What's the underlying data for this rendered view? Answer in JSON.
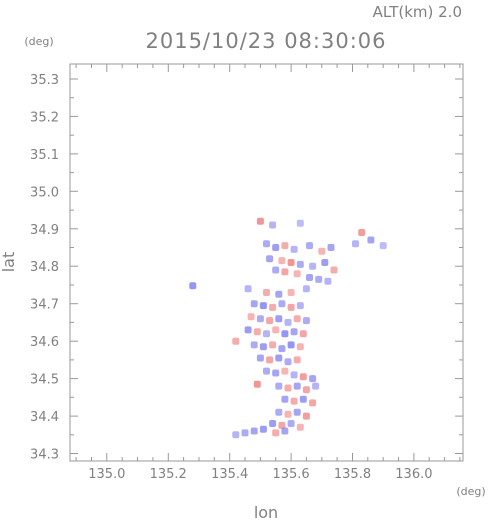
{
  "chart_data": {
    "type": "heatmap",
    "title": "2015/10/23 08:30:06",
    "subtitle": "ALT(km) 2.0",
    "xlabel": "lon",
    "ylabel": "lat",
    "x_unit": "(deg)",
    "y_unit": "(deg)",
    "xlim": [
      134.88,
      136.16
    ],
    "ylim": [
      34.28,
      35.34
    ],
    "xticks": [
      135.0,
      135.2,
      135.4,
      135.6,
      135.8,
      136.0
    ],
    "xtick_labels": [
      "135.0",
      "135.2",
      "135.4",
      "135.6",
      "135.8",
      "136.0"
    ],
    "xminor_step": 0.05,
    "yticks": [
      34.3,
      34.4,
      34.5,
      34.6,
      34.7,
      34.8,
      34.9,
      35.0,
      35.1,
      35.2,
      35.3
    ],
    "ytick_labels": [
      "34.3",
      "34.4",
      "34.5",
      "34.6",
      "34.7",
      "34.8",
      "34.9",
      "35.0",
      "35.1",
      "35.2",
      "35.3"
    ],
    "yminor_step": 0.05,
    "colors": {
      "positive": "#f08080",
      "negative": "#8080f0",
      "axis": "#999999",
      "text": "#808080"
    },
    "cells": [
      {
        "lon": 135.5,
        "lat": 34.92,
        "value": 0.8
      },
      {
        "lon": 135.54,
        "lat": 34.91,
        "value": -0.4
      },
      {
        "lon": 135.63,
        "lat": 34.915,
        "value": -0.3
      },
      {
        "lon": 135.83,
        "lat": 34.89,
        "value": 0.7
      },
      {
        "lon": 135.86,
        "lat": 34.87,
        "value": -0.6
      },
      {
        "lon": 135.81,
        "lat": 34.86,
        "value": -0.4
      },
      {
        "lon": 135.9,
        "lat": 34.855,
        "value": -0.3
      },
      {
        "lon": 135.52,
        "lat": 34.86,
        "value": -0.5
      },
      {
        "lon": 135.55,
        "lat": 34.85,
        "value": -0.7
      },
      {
        "lon": 135.58,
        "lat": 34.855,
        "value": 0.5
      },
      {
        "lon": 135.61,
        "lat": 34.845,
        "value": -0.4
      },
      {
        "lon": 135.66,
        "lat": 34.855,
        "value": -0.5
      },
      {
        "lon": 135.7,
        "lat": 34.84,
        "value": 0.4
      },
      {
        "lon": 135.73,
        "lat": 34.85,
        "value": -0.6
      },
      {
        "lon": 135.53,
        "lat": 34.82,
        "value": -0.6
      },
      {
        "lon": 135.57,
        "lat": 34.815,
        "value": 0.4
      },
      {
        "lon": 135.6,
        "lat": 34.81,
        "value": 0.8
      },
      {
        "lon": 135.63,
        "lat": 34.805,
        "value": -0.5
      },
      {
        "lon": 135.67,
        "lat": 34.8,
        "value": -0.4
      },
      {
        "lon": 135.71,
        "lat": 34.81,
        "value": -0.7
      },
      {
        "lon": 135.74,
        "lat": 34.79,
        "value": 0.5
      },
      {
        "lon": 135.55,
        "lat": 34.79,
        "value": -0.5
      },
      {
        "lon": 135.58,
        "lat": 34.785,
        "value": 0.6
      },
      {
        "lon": 135.62,
        "lat": 34.78,
        "value": 0.4
      },
      {
        "lon": 135.66,
        "lat": 34.77,
        "value": -0.6
      },
      {
        "lon": 135.69,
        "lat": 34.765,
        "value": -0.5
      },
      {
        "lon": 135.72,
        "lat": 34.76,
        "value": -0.4
      },
      {
        "lon": 135.65,
        "lat": 34.74,
        "value": -0.4
      },
      {
        "lon": 135.28,
        "lat": 34.748,
        "value": -0.8
      },
      {
        "lon": 135.46,
        "lat": 34.74,
        "value": -0.4
      },
      {
        "lon": 135.52,
        "lat": 34.73,
        "value": 0.5
      },
      {
        "lon": 135.56,
        "lat": 34.725,
        "value": -0.6
      },
      {
        "lon": 135.6,
        "lat": 34.73,
        "value": 0.4
      },
      {
        "lon": 135.48,
        "lat": 34.7,
        "value": -0.6
      },
      {
        "lon": 135.51,
        "lat": 34.695,
        "value": -0.8
      },
      {
        "lon": 135.54,
        "lat": 34.69,
        "value": 0.5
      },
      {
        "lon": 135.57,
        "lat": 34.7,
        "value": -0.5
      },
      {
        "lon": 135.6,
        "lat": 34.69,
        "value": 0.6
      },
      {
        "lon": 135.63,
        "lat": 34.695,
        "value": -0.4
      },
      {
        "lon": 135.47,
        "lat": 34.665,
        "value": 0.4
      },
      {
        "lon": 135.5,
        "lat": 34.66,
        "value": -0.5
      },
      {
        "lon": 135.53,
        "lat": 34.655,
        "value": 0.6
      },
      {
        "lon": 135.56,
        "lat": 34.66,
        "value": -0.7
      },
      {
        "lon": 135.59,
        "lat": 34.65,
        "value": -0.4
      },
      {
        "lon": 135.62,
        "lat": 34.66,
        "value": 0.5
      },
      {
        "lon": 135.65,
        "lat": 34.655,
        "value": -0.5
      },
      {
        "lon": 135.46,
        "lat": 34.63,
        "value": -0.7
      },
      {
        "lon": 135.49,
        "lat": 34.625,
        "value": 0.5
      },
      {
        "lon": 135.52,
        "lat": 34.62,
        "value": -0.4
      },
      {
        "lon": 135.55,
        "lat": 34.63,
        "value": 0.4
      },
      {
        "lon": 135.58,
        "lat": 34.62,
        "value": -0.8
      },
      {
        "lon": 135.61,
        "lat": 34.625,
        "value": -0.6
      },
      {
        "lon": 135.64,
        "lat": 34.62,
        "value": 0.6
      },
      {
        "lon": 135.42,
        "lat": 34.6,
        "value": 0.5
      },
      {
        "lon": 135.48,
        "lat": 34.59,
        "value": -0.5
      },
      {
        "lon": 135.51,
        "lat": 34.585,
        "value": -0.7
      },
      {
        "lon": 135.54,
        "lat": 34.59,
        "value": 0.5
      },
      {
        "lon": 135.57,
        "lat": 34.58,
        "value": -0.6
      },
      {
        "lon": 135.6,
        "lat": 34.59,
        "value": -0.8
      },
      {
        "lon": 135.63,
        "lat": 34.585,
        "value": 0.4
      },
      {
        "lon": 135.5,
        "lat": 34.555,
        "value": -0.6
      },
      {
        "lon": 135.53,
        "lat": 34.55,
        "value": 0.6
      },
      {
        "lon": 135.56,
        "lat": 34.555,
        "value": -0.7
      },
      {
        "lon": 135.59,
        "lat": 34.545,
        "value": -0.5
      },
      {
        "lon": 135.62,
        "lat": 34.55,
        "value": 0.5
      },
      {
        "lon": 135.52,
        "lat": 34.52,
        "value": -0.5
      },
      {
        "lon": 135.55,
        "lat": 34.515,
        "value": -0.6
      },
      {
        "lon": 135.58,
        "lat": 34.52,
        "value": 0.4
      },
      {
        "lon": 135.61,
        "lat": 34.51,
        "value": -0.4
      },
      {
        "lon": 135.64,
        "lat": 34.505,
        "value": 0.7
      },
      {
        "lon": 135.67,
        "lat": 34.5,
        "value": -0.6
      },
      {
        "lon": 135.49,
        "lat": 34.485,
        "value": 0.8
      },
      {
        "lon": 135.56,
        "lat": 34.48,
        "value": -0.5
      },
      {
        "lon": 135.59,
        "lat": 34.475,
        "value": 0.5
      },
      {
        "lon": 135.62,
        "lat": 34.48,
        "value": -0.6
      },
      {
        "lon": 135.65,
        "lat": 34.47,
        "value": 0.6
      },
      {
        "lon": 135.68,
        "lat": 34.48,
        "value": -0.4
      },
      {
        "lon": 135.58,
        "lat": 34.445,
        "value": -0.6
      },
      {
        "lon": 135.61,
        "lat": 34.44,
        "value": 0.5
      },
      {
        "lon": 135.64,
        "lat": 34.445,
        "value": -0.7
      },
      {
        "lon": 135.67,
        "lat": 34.435,
        "value": 0.6
      },
      {
        "lon": 135.56,
        "lat": 34.41,
        "value": -0.5
      },
      {
        "lon": 135.59,
        "lat": 34.405,
        "value": 0.4
      },
      {
        "lon": 135.62,
        "lat": 34.41,
        "value": -0.6
      },
      {
        "lon": 135.65,
        "lat": 34.4,
        "value": 0.7
      },
      {
        "lon": 135.54,
        "lat": 34.38,
        "value": -0.7
      },
      {
        "lon": 135.57,
        "lat": 34.375,
        "value": 0.6
      },
      {
        "lon": 135.6,
        "lat": 34.38,
        "value": -0.5
      },
      {
        "lon": 135.63,
        "lat": 34.37,
        "value": 0.4
      },
      {
        "lon": 135.48,
        "lat": 34.36,
        "value": -0.6
      },
      {
        "lon": 135.51,
        "lat": 34.365,
        "value": -0.7
      },
      {
        "lon": 135.45,
        "lat": 34.355,
        "value": -0.5
      },
      {
        "lon": 135.42,
        "lat": 34.35,
        "value": -0.4
      },
      {
        "lon": 135.55,
        "lat": 34.355,
        "value": 0.5
      },
      {
        "lon": 135.58,
        "lat": 34.36,
        "value": -0.6
      }
    ]
  }
}
